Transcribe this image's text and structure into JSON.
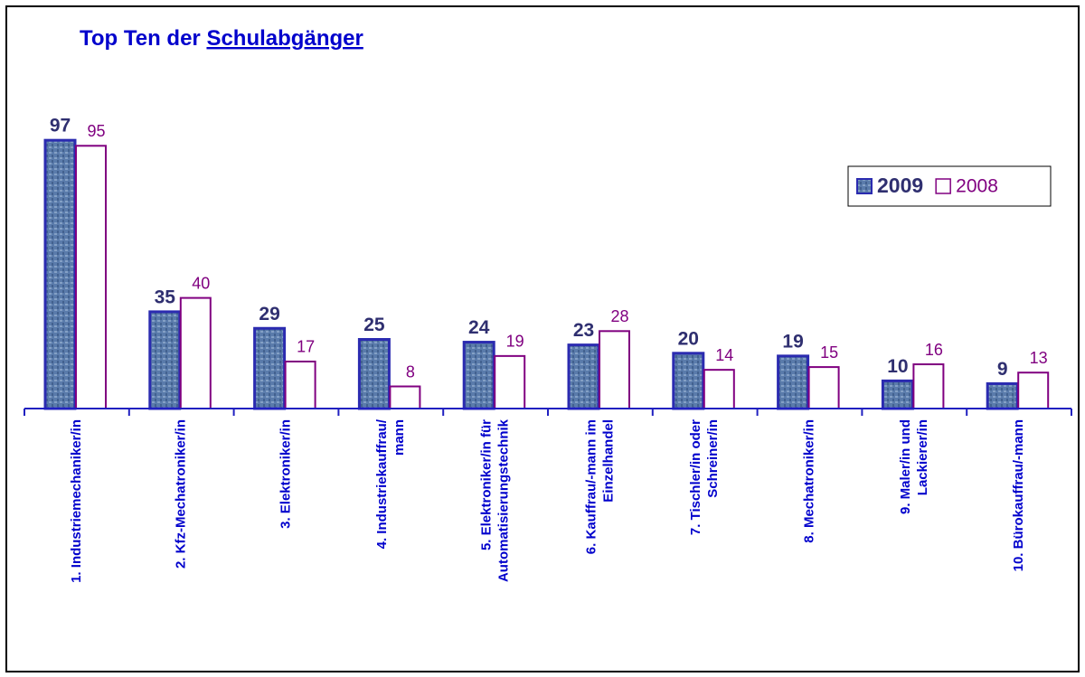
{
  "chart_data": {
    "type": "bar",
    "title": "Top Ten der",
    "title_link": "Schulabgänger",
    "categories": [
      [
        "1. Industriemechaniker/in"
      ],
      [
        "2. Kfz-Mechatroniker/in"
      ],
      [
        "3. Elektroniker/in"
      ],
      [
        "4. Industriekauffrau/",
        "mann"
      ],
      [
        "5. Elektroniker/in für",
        "Automatisierungstechnik"
      ],
      [
        "6. Kauffrau/-mann im",
        "Einzelhandel"
      ],
      [
        "7. Tischler/in oder",
        "Schreiner/in"
      ],
      [
        "8. Mechatroniker/in"
      ],
      [
        "9. Maler/in und",
        "Lackierer/in"
      ],
      [
        "10. Bürokauffrau/-mann"
      ]
    ],
    "series": [
      {
        "name": "2009",
        "color": "#5a7bab",
        "values": [
          97,
          35,
          29,
          25,
          24,
          23,
          20,
          19,
          10,
          9
        ]
      },
      {
        "name": "2008",
        "color": "#800080",
        "values": [
          95,
          40,
          17,
          8,
          19,
          28,
          14,
          15,
          16,
          13
        ]
      }
    ],
    "ylim": [
      0,
      100
    ],
    "legend": "right"
  }
}
